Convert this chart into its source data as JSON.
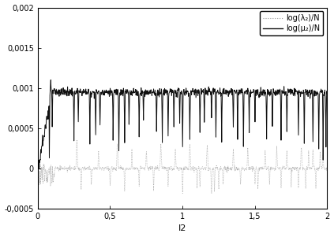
{
  "xlabel": "I2",
  "xlim": [
    0,
    2
  ],
  "ylim": [
    -0.0005,
    0.002
  ],
  "yticks": [
    -0.0005,
    0,
    0.0005,
    0.001,
    0.0015,
    0.002
  ],
  "ytick_labels": [
    "-0,0005",
    "0",
    "0,0005",
    "0,001",
    "0,0015",
    "0,002"
  ],
  "xticks": [
    0,
    0.5,
    1.0,
    1.5,
    2.0
  ],
  "xtick_labels": [
    "0",
    "0,5",
    "1",
    "1,5",
    "2"
  ],
  "legend_label_dotted": "log(λ₂)/N",
  "legend_label_solid": "log(μ₂)/N",
  "n_points": 1000,
  "solid_base": 0.00095,
  "solid_color": "#111111",
  "dotted_color": "#999999",
  "bg_color": "#ffffff"
}
